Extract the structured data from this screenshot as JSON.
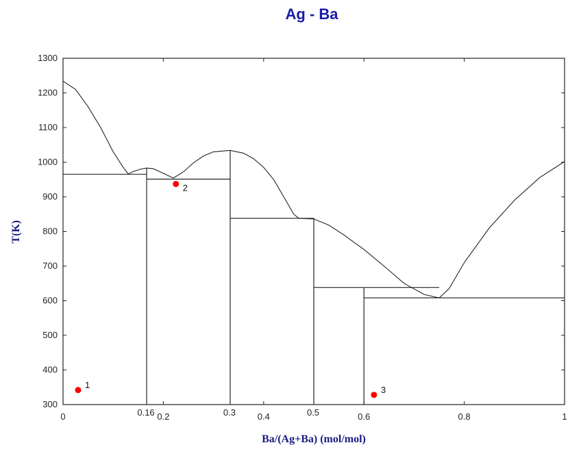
{
  "chart_data": {
    "type": "phase-diagram",
    "title": "Ag - Ba",
    "xlabel": "Ba/(Ag+Ba) (mol/mol)",
    "ylabel": "T(K)",
    "xlim": [
      0,
      1
    ],
    "ylim": [
      300,
      1300
    ],
    "y_ticks": [
      300,
      400,
      500,
      600,
      700,
      800,
      900,
      1000,
      1100,
      1200,
      1300
    ],
    "x_ticks": [
      {
        "value": 0,
        "label": "0"
      },
      {
        "value": 0.2,
        "label": "0.2"
      },
      {
        "value": 0.4,
        "label": "0.4"
      },
      {
        "value": 0.6,
        "label": "0.6"
      },
      {
        "value": 0.8,
        "label": "0.8"
      },
      {
        "value": 1,
        "label": "1"
      }
    ],
    "x_marker_labels": [
      {
        "value": 0.1667,
        "label": "0.16"
      },
      {
        "value": 0.3333,
        "label": "0.3"
      },
      {
        "value": 0.5,
        "label": "0.5"
      }
    ],
    "liquidus": [
      {
        "x": 0.0,
        "y": 1234
      },
      {
        "x": 0.025,
        "y": 1210
      },
      {
        "x": 0.05,
        "y": 1160
      },
      {
        "x": 0.075,
        "y": 1100
      },
      {
        "x": 0.1,
        "y": 1030
      },
      {
        "x": 0.12,
        "y": 985
      },
      {
        "x": 0.13,
        "y": 966
      },
      {
        "x": 0.14,
        "y": 973
      },
      {
        "x": 0.155,
        "y": 980
      },
      {
        "x": 0.1667,
        "y": 983
      },
      {
        "x": 0.18,
        "y": 981
      },
      {
        "x": 0.2,
        "y": 968
      },
      {
        "x": 0.22,
        "y": 954
      },
      {
        "x": 0.24,
        "y": 972
      },
      {
        "x": 0.26,
        "y": 998
      },
      {
        "x": 0.28,
        "y": 1018
      },
      {
        "x": 0.3,
        "y": 1030
      },
      {
        "x": 0.3333,
        "y": 1034
      },
      {
        "x": 0.36,
        "y": 1026
      },
      {
        "x": 0.38,
        "y": 1010
      },
      {
        "x": 0.4,
        "y": 985
      },
      {
        "x": 0.42,
        "y": 950
      },
      {
        "x": 0.44,
        "y": 900
      },
      {
        "x": 0.46,
        "y": 850
      },
      {
        "x": 0.47,
        "y": 838
      },
      {
        "x": 0.5,
        "y": 836
      },
      {
        "x": 0.53,
        "y": 818
      },
      {
        "x": 0.56,
        "y": 790
      },
      {
        "x": 0.6,
        "y": 748
      },
      {
        "x": 0.64,
        "y": 700
      },
      {
        "x": 0.68,
        "y": 650
      },
      {
        "x": 0.72,
        "y": 618
      },
      {
        "x": 0.75,
        "y": 608
      },
      {
        "x": 0.77,
        "y": 635
      },
      {
        "x": 0.8,
        "y": 710
      },
      {
        "x": 0.85,
        "y": 810
      },
      {
        "x": 0.9,
        "y": 890
      },
      {
        "x": 0.95,
        "y": 955
      },
      {
        "x": 1.0,
        "y": 1002
      }
    ],
    "horizontal_lines": [
      {
        "x1": 0.0,
        "x2": 0.1667,
        "y": 965
      },
      {
        "x1": 0.1667,
        "x2": 0.3333,
        "y": 951
      },
      {
        "x1": 0.3333,
        "x2": 0.5,
        "y": 838
      },
      {
        "x1": 0.5,
        "x2": 0.6,
        "y": 638
      },
      {
        "x1": 0.6,
        "x2": 0.75,
        "y": 638
      },
      {
        "x1": 0.6,
        "x2": 1.0,
        "y": 608
      }
    ],
    "vertical_lines": [
      {
        "x": 0.1667,
        "y1": 300,
        "y2": 983
      },
      {
        "x": 0.3333,
        "y1": 300,
        "y2": 1034
      },
      {
        "x": 0.5,
        "y1": 300,
        "y2": 838
      },
      {
        "x": 0.6,
        "y1": 300,
        "y2": 638
      }
    ],
    "points": [
      {
        "label": "1",
        "x": 0.03,
        "y": 342,
        "color": "#ff0000"
      },
      {
        "label": "2",
        "x": 0.225,
        "y": 937,
        "color": "#ff0000"
      },
      {
        "label": "3",
        "x": 0.62,
        "y": 328,
        "color": "#ff0000"
      }
    ],
    "grid": false,
    "colors": {
      "title": "#1a1aa8",
      "axis_label": "#1a1a80",
      "line": "#222222",
      "point": "#ff0000"
    }
  }
}
